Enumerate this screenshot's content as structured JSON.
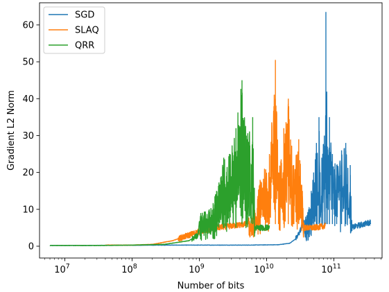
{
  "chart_data": {
    "type": "line",
    "xlabel": "Number of bits",
    "ylabel": "Gradient L2 Norm",
    "x_scale": "log",
    "xlim": [
      4200000,
      520000000000
    ],
    "ylim": [
      -3.2,
      66
    ],
    "x_major_ticks": [
      {
        "value": 10000000,
        "base": "10",
        "exp": "7"
      },
      {
        "value": 100000000,
        "base": "10",
        "exp": "8"
      },
      {
        "value": 1000000000,
        "base": "10",
        "exp": "9"
      },
      {
        "value": 10000000000,
        "base": "10",
        "exp": "10"
      },
      {
        "value": 100000000000,
        "base": "10",
        "exp": "11"
      }
    ],
    "y_ticks": [
      0,
      10,
      20,
      30,
      40,
      50,
      60
    ],
    "legend": {
      "position": "upper-left"
    },
    "grid": false,
    "series": [
      {
        "name": "SGD",
        "color": "#1f77b4",
        "points": [
          [
            6000000,
            0.2
          ],
          [
            20000000,
            0.2
          ],
          [
            80000000,
            0.25
          ],
          [
            300000000,
            0.3
          ],
          [
            1000000000,
            0.3
          ],
          [
            5000000000,
            0.3
          ],
          [
            15000000000,
            0.4
          ],
          [
            22000000000,
            0.8
          ],
          [
            28000000000,
            2.2
          ],
          [
            32000000000,
            4.5
          ],
          [
            35000000000,
            6.5
          ],
          [
            38000000000,
            8
          ],
          [
            42000000000,
            10
          ],
          [
            46000000000,
            15
          ],
          [
            50000000000,
            20
          ],
          [
            55000000000,
            28
          ],
          [
            60000000000,
            35
          ],
          [
            66000000000,
            24
          ],
          [
            72000000000,
            30
          ],
          [
            76000000000,
            63.5
          ],
          [
            80000000000,
            27
          ],
          [
            86000000000,
            35
          ],
          [
            95000000000,
            25
          ],
          [
            110000000000,
            22
          ],
          [
            130000000000,
            26
          ],
          [
            150000000000,
            28
          ],
          [
            175000000000,
            22
          ],
          [
            185000000000,
            5
          ],
          [
            220000000000,
            5.5
          ],
          [
            280000000000,
            6
          ],
          [
            350000000000,
            6.5
          ]
        ],
        "noise": 11
      },
      {
        "name": "SLAQ",
        "color": "#ff7f0e",
        "points": [
          [
            40000000,
            0.3
          ],
          [
            100000000,
            0.3
          ],
          [
            200000000,
            0.5
          ],
          [
            400000000,
            1.5
          ],
          [
            700000000,
            3
          ],
          [
            1000000000,
            4
          ],
          [
            1800000000,
            5
          ],
          [
            3000000000,
            5.5
          ],
          [
            5000000000,
            6
          ],
          [
            6500000000,
            9
          ],
          [
            8000000000,
            18
          ],
          [
            11000000000,
            25
          ],
          [
            13500000000,
            50.5
          ],
          [
            15000000000,
            20
          ],
          [
            18000000000,
            32
          ],
          [
            21000000000,
            40
          ],
          [
            25000000000,
            22
          ],
          [
            30000000000,
            29
          ],
          [
            34000000000,
            15
          ],
          [
            36000000000,
            5
          ],
          [
            50000000000,
            5
          ],
          [
            75000000000,
            5.5
          ]
        ],
        "noise": 10
      },
      {
        "name": "QRR",
        "color": "#2ca02c",
        "points": [
          [
            6000000,
            0.2
          ],
          [
            30000000,
            0.2
          ],
          [
            100000000,
            0.3
          ],
          [
            300000000,
            0.5
          ],
          [
            700000000,
            1.5
          ],
          [
            950000000,
            3
          ],
          [
            1050000000,
            9
          ],
          [
            1400000000,
            10
          ],
          [
            1800000000,
            15
          ],
          [
            2300000000,
            24
          ],
          [
            2800000000,
            25
          ],
          [
            3500000000,
            32
          ],
          [
            4300000000,
            45
          ],
          [
            5000000000,
            30
          ],
          [
            6200000000,
            35
          ],
          [
            6800000000,
            5
          ],
          [
            9000000000,
            5
          ],
          [
            11000000000,
            5
          ]
        ],
        "noise": 9
      }
    ]
  }
}
